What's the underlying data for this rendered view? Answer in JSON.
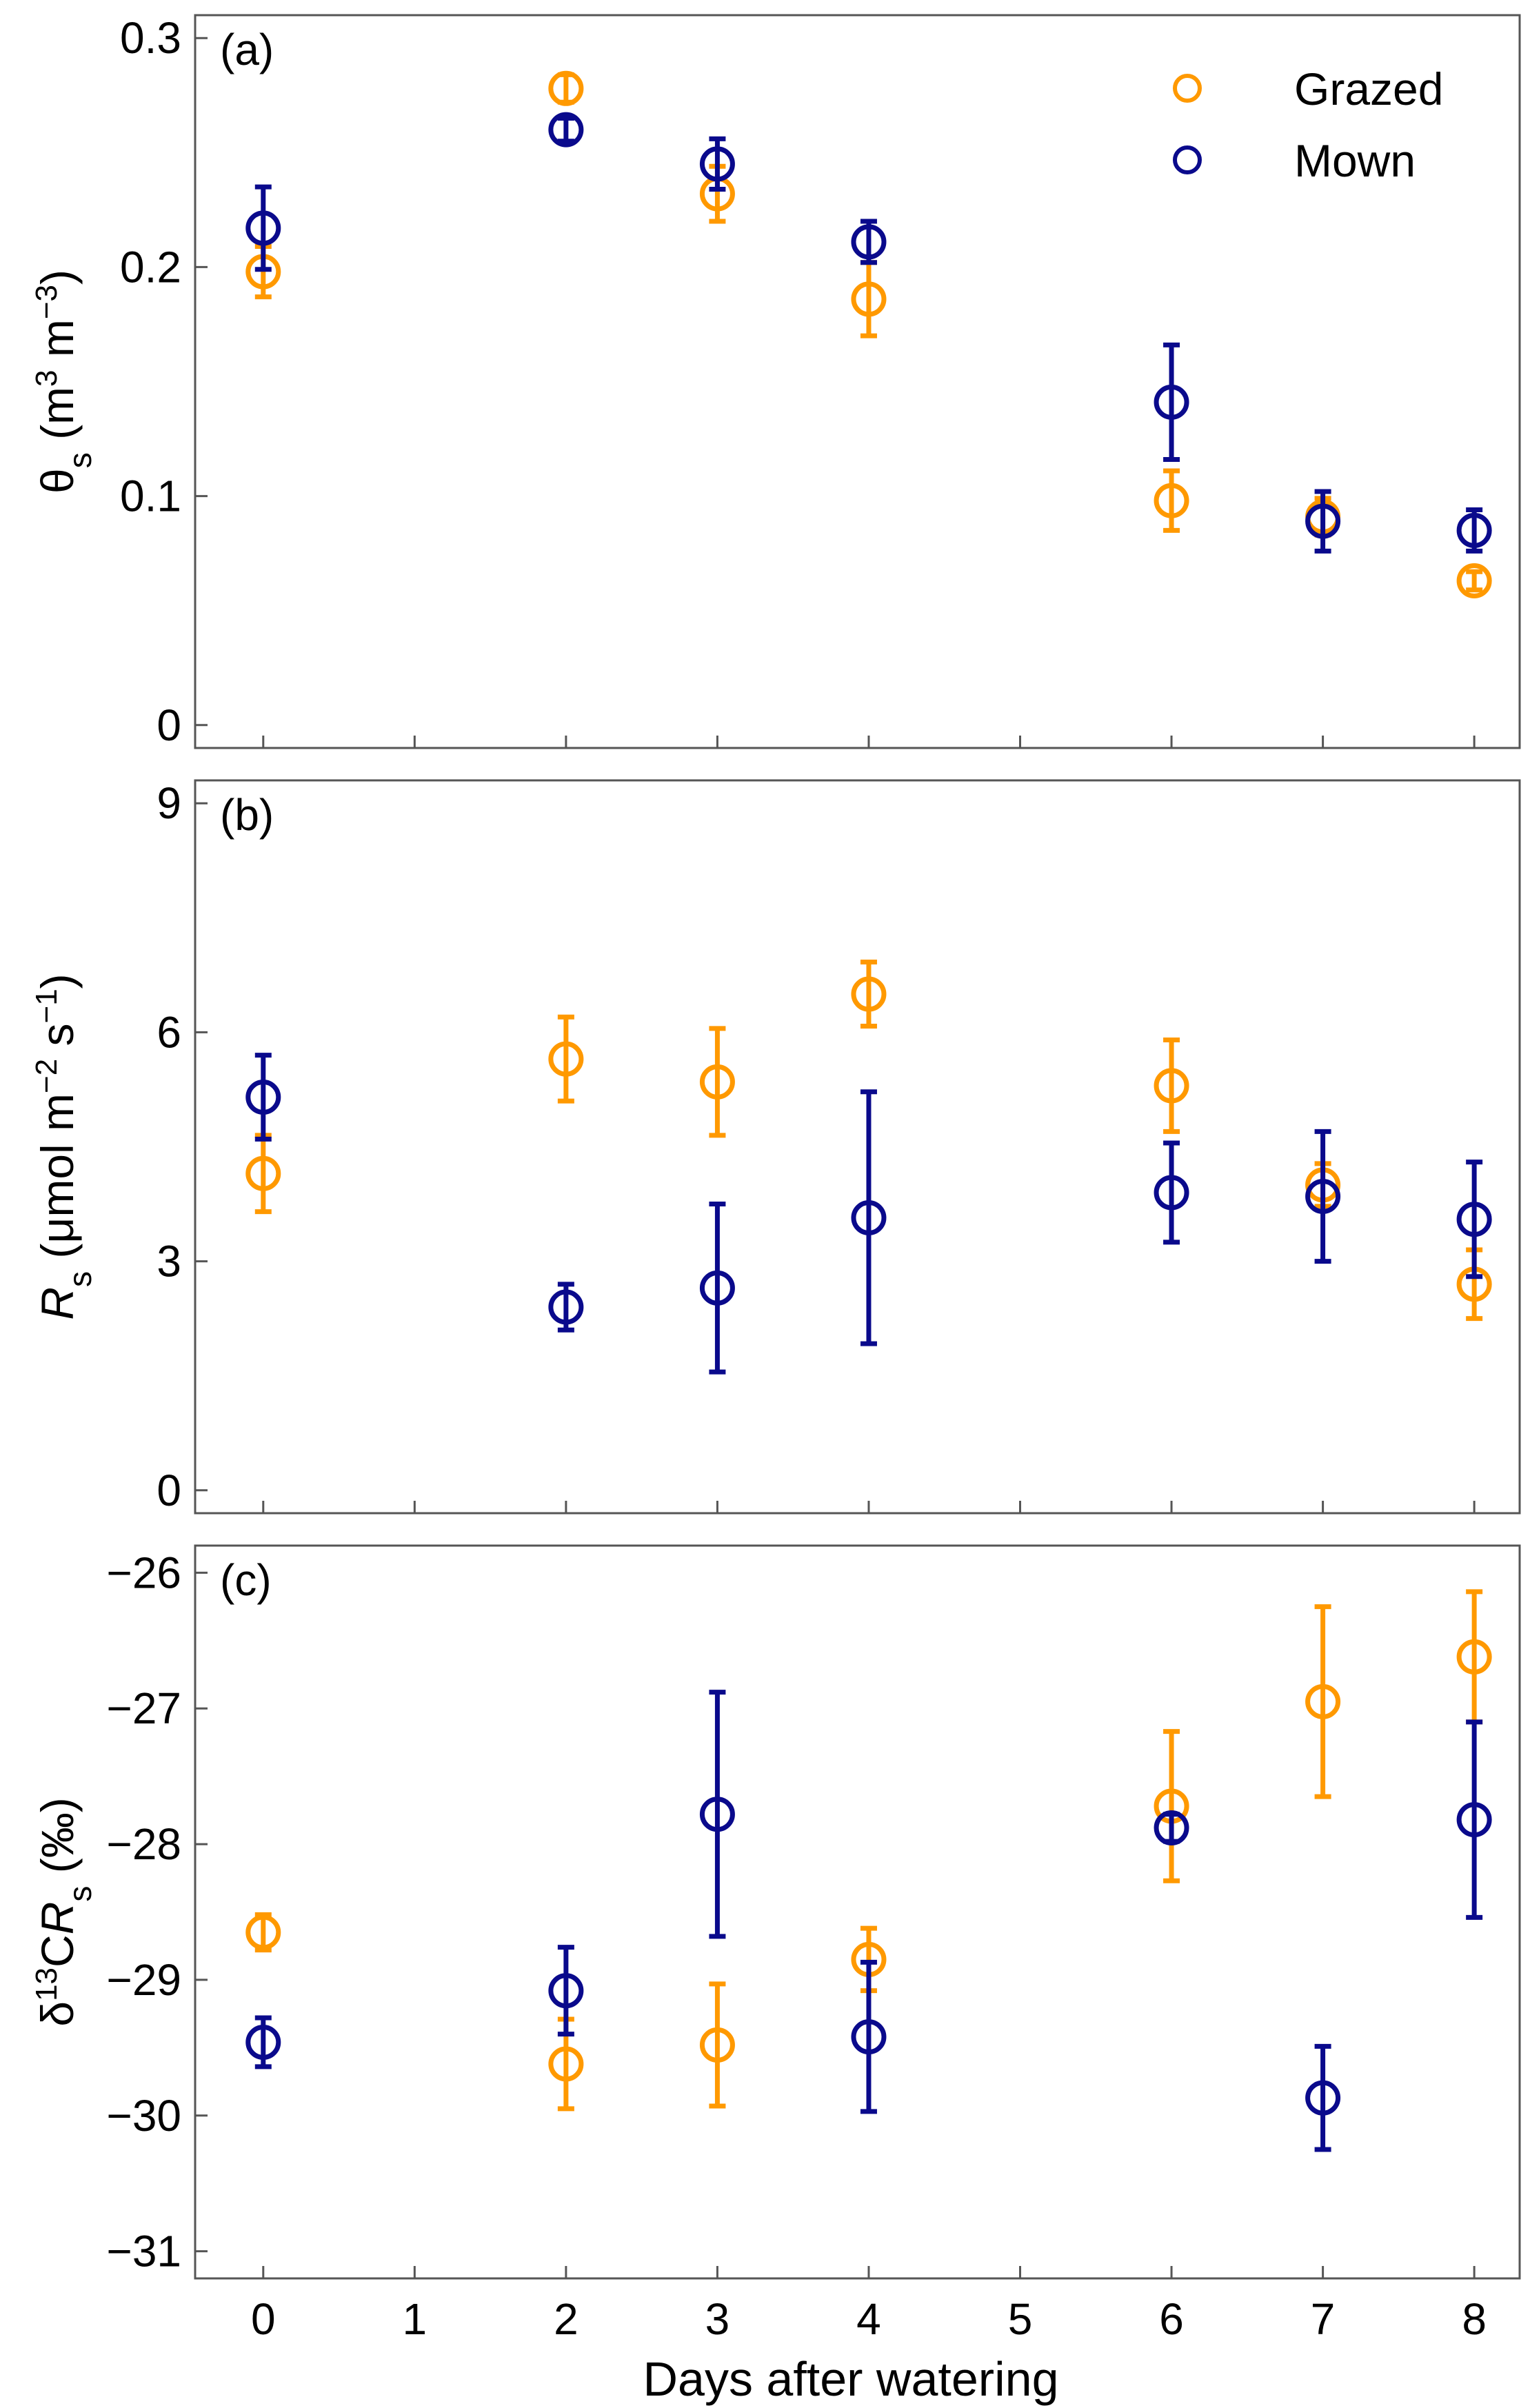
{
  "chart_data": [
    {
      "type": "scatter",
      "panel_label": "(a)",
      "ylabel": {
        "symbol": "θ",
        "subscript": "s",
        "unit_open": " (m",
        "sup1": "3",
        "unit_mid": " m",
        "sup2": "−3",
        "unit_close": ")"
      },
      "ylim": [
        -0.01,
        0.31
      ],
      "yticks": [
        0,
        0.1,
        0.2,
        0.3
      ],
      "ytick_labels": [
        "0",
        "0.1",
        "0.2",
        "0.3"
      ],
      "legend": {
        "position": "top-right",
        "entries": [
          "Grazed",
          "Mown"
        ]
      },
      "series": [
        {
          "name": "Grazed",
          "color": "#FF9900",
          "points": [
            {
              "x": 0,
              "y": 0.198,
              "err": 0.011
            },
            {
              "x": 2,
              "y": 0.278,
              "err": 0.006
            },
            {
              "x": 3,
              "y": 0.232,
              "err": 0.012
            },
            {
              "x": 4,
              "y": 0.186,
              "err": 0.016
            },
            {
              "x": 6,
              "y": 0.098,
              "err": 0.013
            },
            {
              "x": 7,
              "y": 0.091,
              "err": 0.008
            },
            {
              "x": 8,
              "y": 0.063,
              "err": 0.004
            }
          ]
        },
        {
          "name": "Mown",
          "color": "#0A0A8C",
          "points": [
            {
              "x": 0,
              "y": 0.217,
              "err": 0.018
            },
            {
              "x": 2,
              "y": 0.26,
              "err": 0.005
            },
            {
              "x": 3,
              "y": 0.245,
              "err": 0.011
            },
            {
              "x": 4,
              "y": 0.211,
              "err": 0.009
            },
            {
              "x": 6,
              "y": 0.141,
              "err": 0.025
            },
            {
              "x": 7,
              "y": 0.089,
              "err": 0.013
            },
            {
              "x": 8,
              "y": 0.085,
              "err": 0.009
            }
          ]
        }
      ]
    },
    {
      "type": "scatter",
      "panel_label": "(b)",
      "ylabel": {
        "symbol": "R",
        "subscript": "s",
        "unit_open": " (μmol m",
        "sup1": "−2",
        "unit_mid": " s",
        "sup2": "−1",
        "unit_close": ")"
      },
      "ylim": [
        -0.3,
        9.3
      ],
      "yticks": [
        0,
        3,
        6,
        9
      ],
      "ytick_labels": [
        "0",
        "3",
        "6",
        "9"
      ],
      "series": [
        {
          "name": "Grazed",
          "color": "#FF9900",
          "points": [
            {
              "x": 0,
              "y": 4.15,
              "err": 0.5
            },
            {
              "x": 2,
              "y": 5.65,
              "err": 0.55
            },
            {
              "x": 3,
              "y": 5.35,
              "err": 0.7
            },
            {
              "x": 4,
              "y": 6.5,
              "err": 0.42
            },
            {
              "x": 6,
              "y": 5.3,
              "err": 0.6
            },
            {
              "x": 7,
              "y": 4.0,
              "err": 0.28
            },
            {
              "x": 8,
              "y": 2.7,
              "err": 0.45
            }
          ]
        },
        {
          "name": "Mown",
          "color": "#0A0A8C",
          "points": [
            {
              "x": 0,
              "y": 5.15,
              "err": 0.55
            },
            {
              "x": 2,
              "y": 2.4,
              "err": 0.3
            },
            {
              "x": 3,
              "y": 2.65,
              "err": 1.1
            },
            {
              "x": 4,
              "y": 3.57,
              "err": 1.65
            },
            {
              "x": 6,
              "y": 3.9,
              "err": 0.65
            },
            {
              "x": 7,
              "y": 3.85,
              "err": 0.85
            },
            {
              "x": 8,
              "y": 3.55,
              "err": 0.75
            }
          ]
        }
      ]
    },
    {
      "type": "scatter",
      "panel_label": "(c)",
      "ylabel": {
        "symbol": "δ",
        "sup_pre": "13",
        "mid": "C",
        "italic": "R",
        "subscript": "s",
        "unit": " (‰)"
      },
      "ylim": [
        -31.2,
        -25.8
      ],
      "yticks": [
        -31,
        -30,
        -29,
        -28,
        -27,
        -26
      ],
      "ytick_labels": [
        "−31",
        "−30",
        "−29",
        "−28",
        "−27",
        "−26"
      ],
      "series": [
        {
          "name": "Grazed",
          "color": "#FF9900",
          "points": [
            {
              "x": 0,
              "y": -28.65,
              "err": 0.13
            },
            {
              "x": 2,
              "y": -29.62,
              "err": 0.33
            },
            {
              "x": 3,
              "y": -29.48,
              "err": 0.45
            },
            {
              "x": 4,
              "y": -28.85,
              "err": 0.23
            },
            {
              "x": 6,
              "y": -27.72,
              "err": 0.55
            },
            {
              "x": 7,
              "y": -26.95,
              "err": 0.7
            },
            {
              "x": 8,
              "y": -26.62,
              "err": 0.48
            }
          ]
        },
        {
          "name": "Mown",
          "color": "#0A0A8C",
          "points": [
            {
              "x": 0,
              "y": -29.46,
              "err": 0.18
            },
            {
              "x": 2,
              "y": -29.08,
              "err": 0.32
            },
            {
              "x": 3,
              "y": -27.78,
              "err": 0.9
            },
            {
              "x": 4,
              "y": -29.42,
              "err": 0.55
            },
            {
              "x": 6,
              "y": -27.88,
              "err": 0.1
            },
            {
              "x": 7,
              "y": -29.87,
              "err": 0.38
            },
            {
              "x": 8,
              "y": -27.82,
              "err": 0.72
            }
          ]
        }
      ]
    }
  ],
  "x_axis": {
    "xlim": [
      -0.45,
      8.3
    ],
    "xticks": [
      0,
      1,
      2,
      3,
      4,
      5,
      6,
      7,
      8
    ],
    "xtick_labels": [
      "0",
      "1",
      "2",
      "3",
      "4",
      "5",
      "6",
      "7",
      "8"
    ],
    "xlabel": "Days after watering"
  }
}
